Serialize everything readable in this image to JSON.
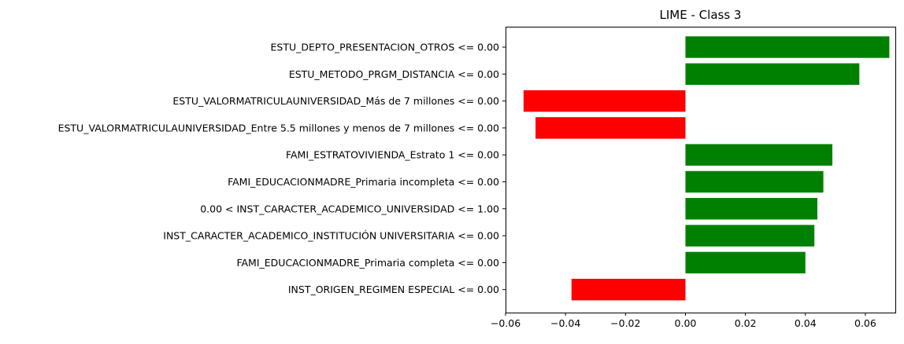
{
  "chart_data": {
    "type": "bar",
    "orientation": "horizontal",
    "title": "LIME - Class 3",
    "xlabel": "",
    "ylabel": "",
    "xlim": [
      -0.06,
      0.07
    ],
    "xticks": [
      -0.06,
      -0.04,
      -0.02,
      0.0,
      0.02,
      0.04,
      0.06
    ],
    "xtick_labels": [
      "−0.06",
      "−0.04",
      "−0.02",
      "0.00",
      "0.02",
      "0.04",
      "0.06"
    ],
    "grid": false,
    "legend": "none",
    "colors": {
      "positive": "#008000",
      "negative": "#ff0000"
    },
    "categories": [
      "ESTU_DEPTO_PRESENTACION_OTROS <= 0.00",
      "ESTU_METODO_PRGM_DISTANCIA <= 0.00",
      "ESTU_VALORMATRICULAUNIVERSIDAD_Más de 7 millones <= 0.00",
      "ESTU_VALORMATRICULAUNIVERSIDAD_Entre 5.5 millones y menos de 7 millones <= 0.00",
      "FAMI_ESTRATOVIVIENDA_Estrato 1 <= 0.00",
      "FAMI_EDUCACIONMADRE_Primaria incompleta <= 0.00",
      "0.00 < INST_CARACTER_ACADEMICO_UNIVERSIDAD <= 1.00",
      "INST_CARACTER_ACADEMICO_INSTITUCIÓN UNIVERSITARIA <= 0.00",
      "FAMI_EDUCACIONMADRE_Primaria completa <= 0.00",
      "INST_ORIGEN_REGIMEN ESPECIAL <= 0.00"
    ],
    "values": [
      0.068,
      0.058,
      -0.054,
      -0.05,
      0.049,
      0.046,
      0.044,
      0.043,
      0.04,
      -0.038
    ]
  }
}
